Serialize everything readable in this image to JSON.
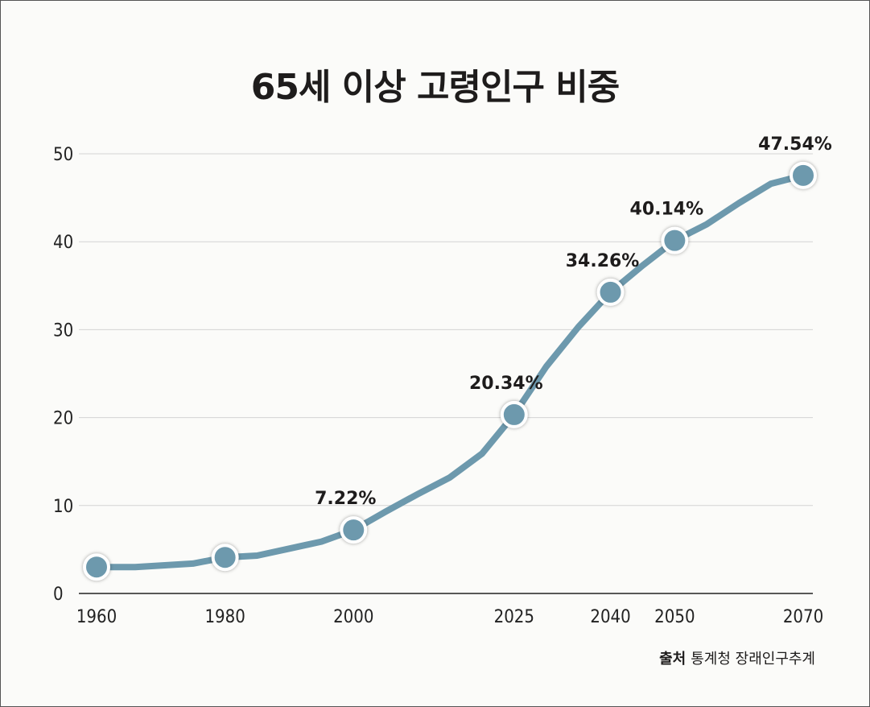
{
  "chart_data": {
    "type": "line",
    "title": "65세 이상 고령인구 비중",
    "xlabel": "",
    "ylabel": "",
    "xlim": [
      1960,
      2070
    ],
    "ylim": [
      0,
      50
    ],
    "yticks": [
      0,
      10,
      20,
      30,
      40,
      50
    ],
    "xticks": [
      1960,
      1980,
      2000,
      2025,
      2040,
      2050,
      2070
    ],
    "grid": "horizontal",
    "color": "#6d99ad",
    "series": [
      {
        "x": [
          1960,
          1966,
          1975,
          1980,
          1985,
          1990,
          1995,
          2000,
          2005,
          2010,
          2015,
          2020,
          2025,
          2030,
          2035,
          2040,
          2045,
          2050,
          2055,
          2060,
          2065,
          2070
        ],
        "values": [
          3.0,
          3.0,
          3.4,
          4.1,
          4.3,
          5.1,
          5.9,
          7.22,
          9.3,
          11.3,
          13.2,
          15.9,
          20.34,
          25.8,
          30.3,
          34.26,
          37.3,
          40.14,
          42.0,
          44.4,
          46.6,
          47.54
        ]
      }
    ],
    "markers": [
      {
        "x": 1960,
        "y": 3.0,
        "label": ""
      },
      {
        "x": 1980,
        "y": 4.1,
        "label": ""
      },
      {
        "x": 2000,
        "y": 7.22,
        "label": "7.22%"
      },
      {
        "x": 2025,
        "y": 20.34,
        "label": "20.34%"
      },
      {
        "x": 2040,
        "y": 34.26,
        "label": "34.26%"
      },
      {
        "x": 2050,
        "y": 40.14,
        "label": "40.14%"
      },
      {
        "x": 2070,
        "y": 47.54,
        "label": "47.54%"
      }
    ]
  },
  "source": {
    "key": "출처",
    "text": "통계청 장래인구추계"
  }
}
